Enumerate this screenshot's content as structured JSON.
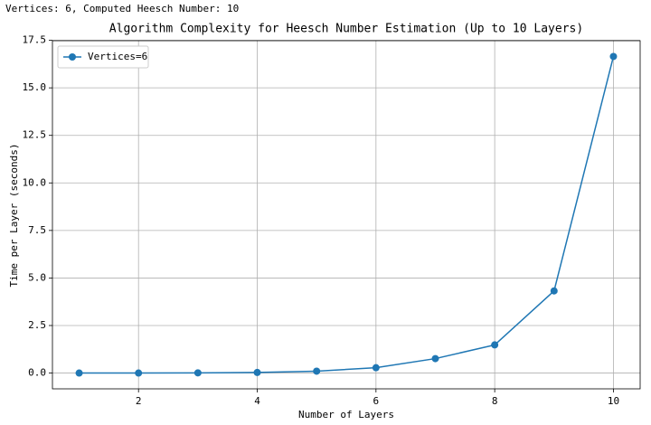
{
  "status_text": "Vertices: 6, Computed Heesch Number: 10",
  "chart_data": {
    "type": "line",
    "title": "Algorithm Complexity for Heesch Number Estimation (Up to 10 Layers)",
    "x_label": "Number of Layers",
    "y_label": "Time per Layer (seconds)",
    "x": [
      1,
      2,
      3,
      4,
      5,
      6,
      7,
      8,
      9,
      10
    ],
    "series": [
      {
        "name": "Vertices=6",
        "color": "#1f77b4",
        "values": [
          0.0,
          0.0,
          0.01,
          0.03,
          0.1,
          0.28,
          0.76,
          1.48,
          4.32,
          16.65
        ]
      }
    ],
    "xlim": [
      0.55,
      10.45
    ],
    "ylim": [
      -0.83,
      17.48
    ],
    "xticks": [
      2,
      4,
      6,
      8,
      10
    ],
    "yticks": [
      {
        "value": 0,
        "label": "0.0"
      },
      2.5,
      {
        "value": 5,
        "label": "5.0"
      },
      7.5,
      {
        "value": 10,
        "label": "10.0"
      },
      12.5,
      {
        "value": 15,
        "label": "15.0"
      },
      17.5
    ],
    "grid": true,
    "legend": "upper left",
    "marker": "circle"
  }
}
